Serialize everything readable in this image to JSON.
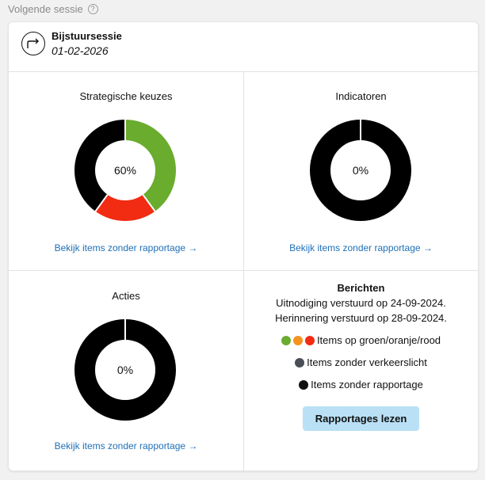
{
  "header": {
    "title": "Volgende sessie",
    "help": "?"
  },
  "session": {
    "title": "Bijstuursessie",
    "date": "01-02-2026"
  },
  "quadrants": {
    "strategic": {
      "title": "Strategische keuzes",
      "center": "60%",
      "link": "Bekijk items zonder rapportage →"
    },
    "indicators": {
      "title": "Indicatoren",
      "center": "0%",
      "link": "Bekijk items zonder rapportage →"
    },
    "actions": {
      "title": "Acties",
      "center": "0%",
      "link": "Bekijk items zonder rapportage →"
    }
  },
  "chart_data": [
    {
      "type": "pie",
      "title": "Strategische keuzes",
      "center_label": "60%",
      "categories": [
        "groen",
        "rood",
        "zonder rapportage"
      ],
      "values": [
        40,
        20,
        40
      ],
      "colors": [
        "#6aac2e",
        "#f22b13",
        "#000000"
      ]
    },
    {
      "type": "pie",
      "title": "Indicatoren",
      "center_label": "0%",
      "categories": [
        "zonder rapportage"
      ],
      "values": [
        100
      ],
      "colors": [
        "#000000"
      ]
    },
    {
      "type": "pie",
      "title": "Acties",
      "center_label": "0%",
      "categories": [
        "zonder rapportage"
      ],
      "values": [
        100
      ],
      "colors": [
        "#000000"
      ]
    }
  ],
  "messages": {
    "title": "Berichten",
    "invite": "Uitnodiging verstuurd op 24-09-2024.",
    "reminder": "Herinnering verstuurd op 28-09-2024.",
    "legend": [
      {
        "label": "Items op groen/oranje/rood",
        "colors": [
          "#6aac2e",
          "#f5921e",
          "#f22b13"
        ]
      },
      {
        "label": "Items zonder verkeerslicht",
        "colors": [
          "#4a4f57"
        ]
      },
      {
        "label": "Items zonder rapportage",
        "colors": [
          "#111111"
        ]
      }
    ],
    "button": "Rapportages lezen"
  }
}
